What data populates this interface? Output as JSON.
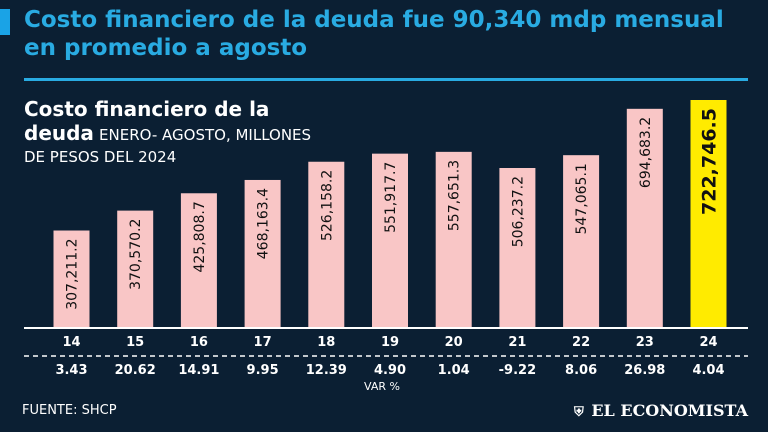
{
  "headline": "Costo financiero de la deuda fue 90,340 mdp mensual en promedio a agosto",
  "chart_title": {
    "main": "Costo financiero de la deuda",
    "sub": "ENERO- AGOSTO, MILLONES DE PESOS DEL 2024"
  },
  "source": "FUENTE:  SHCP",
  "brand": "EL ECONOMISTA",
  "brand_icon": "shield-icon",
  "colors": {
    "background": "#0b1f33",
    "headline": "#29abe2",
    "bar": "#f9c6c6",
    "bar_highlight": "#ffeb00",
    "text": "#ffffff",
    "value_text": "#111111"
  },
  "chart_data": {
    "type": "bar",
    "title": "Costo financiero de la deuda",
    "subtitle": "ENERO- AGOSTO, MILLONES DE PESOS DEL 2024",
    "categories": [
      "14",
      "15",
      "16",
      "17",
      "18",
      "19",
      "20",
      "21",
      "22",
      "23",
      "24"
    ],
    "values": [
      307211.2,
      370570.2,
      425808.7,
      468163.4,
      526158.2,
      551917.7,
      557651.3,
      506237.2,
      547065.1,
      694683.2,
      722746.5
    ],
    "value_labels": [
      "307,211.2",
      "370,570.2",
      "425,808.7",
      "468,163.4",
      "526,158.2",
      "551,917.7",
      "557,651.3",
      "506,237.2",
      "547,065.1",
      "694,683.2",
      "722,746.5"
    ],
    "highlight_index": 10,
    "var_label": "VAR %",
    "var_values": [
      "3.43",
      "20.62",
      "14.91",
      "9.95",
      "12.39",
      "4.90",
      "1.04",
      "-9.22",
      "8.06",
      "26.98",
      "4.04"
    ],
    "xlabel": "",
    "ylabel": "",
    "grid": false
  }
}
